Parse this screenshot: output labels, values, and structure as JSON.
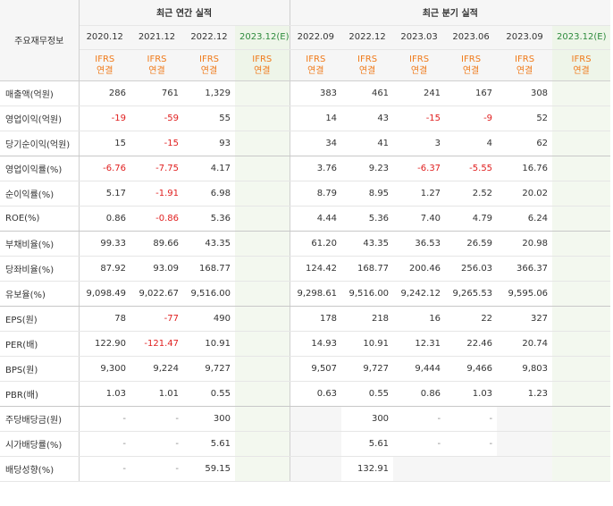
{
  "header": {
    "row_label": "주요재무정보",
    "annual_group": "최근 연간 실적",
    "quarter_group": "최근 분기 실적",
    "ifrs_top": "IFRS",
    "ifrs_bottom": "연결",
    "est_suffix": "(E)",
    "annual_periods": [
      "2020.12",
      "2021.12",
      "2022.12",
      "2023.12"
    ],
    "quarter_periods": [
      "2022.09",
      "2022.12",
      "2023.03",
      "2023.06",
      "2023.09",
      "2023.12"
    ]
  },
  "rows": [
    {
      "label": "매출액(억원)",
      "annual": [
        "286",
        "761",
        "1,329",
        ""
      ],
      "quarter": [
        "383",
        "461",
        "241",
        "167",
        "308",
        ""
      ]
    },
    {
      "label": "영업이익(억원)",
      "annual": [
        "-19",
        "-59",
        "55",
        ""
      ],
      "quarter": [
        "14",
        "43",
        "-15",
        "-9",
        "52",
        ""
      ]
    },
    {
      "label": "당기순이익(억원)",
      "annual": [
        "15",
        "-15",
        "93",
        ""
      ],
      "quarter": [
        "34",
        "41",
        "3",
        "4",
        "62",
        ""
      ]
    },
    {
      "label": "영업이익률(%)",
      "annual": [
        "-6.76",
        "-7.75",
        "4.17",
        ""
      ],
      "quarter": [
        "3.76",
        "9.23",
        "-6.37",
        "-5.55",
        "16.76",
        ""
      ]
    },
    {
      "label": "순이익률(%)",
      "annual": [
        "5.17",
        "-1.91",
        "6.98",
        ""
      ],
      "quarter": [
        "8.79",
        "8.95",
        "1.27",
        "2.52",
        "20.02",
        ""
      ]
    },
    {
      "label": "ROE(%)",
      "annual": [
        "0.86",
        "-0.86",
        "5.36",
        ""
      ],
      "quarter": [
        "4.44",
        "5.36",
        "7.40",
        "4.79",
        "6.24",
        ""
      ]
    },
    {
      "label": "부채비율(%)",
      "annual": [
        "99.33",
        "89.66",
        "43.35",
        ""
      ],
      "quarter": [
        "61.20",
        "43.35",
        "36.53",
        "26.59",
        "20.98",
        ""
      ]
    },
    {
      "label": "당좌비율(%)",
      "annual": [
        "87.92",
        "93.09",
        "168.77",
        ""
      ],
      "quarter": [
        "124.42",
        "168.77",
        "200.46",
        "256.03",
        "366.37",
        ""
      ]
    },
    {
      "label": "유보율(%)",
      "annual": [
        "9,098.49",
        "9,022.67",
        "9,516.00",
        ""
      ],
      "quarter": [
        "9,298.61",
        "9,516.00",
        "9,242.12",
        "9,265.53",
        "9,595.06",
        ""
      ]
    },
    {
      "label": "EPS(원)",
      "annual": [
        "78",
        "-77",
        "490",
        ""
      ],
      "quarter": [
        "178",
        "218",
        "16",
        "22",
        "327",
        ""
      ]
    },
    {
      "label": "PER(배)",
      "annual": [
        "122.90",
        "-121.47",
        "10.91",
        ""
      ],
      "quarter": [
        "14.93",
        "10.91",
        "12.31",
        "22.46",
        "20.74",
        ""
      ]
    },
    {
      "label": "BPS(원)",
      "annual": [
        "9,300",
        "9,224",
        "9,727",
        ""
      ],
      "quarter": [
        "9,507",
        "9,727",
        "9,444",
        "9,466",
        "9,803",
        ""
      ]
    },
    {
      "label": "PBR(배)",
      "annual": [
        "1.03",
        "1.01",
        "0.55",
        ""
      ],
      "quarter": [
        "0.63",
        "0.55",
        "0.86",
        "1.03",
        "1.23",
        ""
      ]
    },
    {
      "label": "주당배당금(원)",
      "annual": [
        "-",
        "-",
        "300",
        ""
      ],
      "quarter": [
        "",
        "300",
        "-",
        "-",
        "",
        ""
      ]
    },
    {
      "label": "시가배당률(%)",
      "annual": [
        "-",
        "-",
        "5.61",
        ""
      ],
      "quarter": [
        "",
        "5.61",
        "-",
        "-",
        "",
        ""
      ]
    },
    {
      "label": "배당성향(%)",
      "annual": [
        "-",
        "-",
        "59.15",
        ""
      ],
      "quarter": [
        "",
        "132.91",
        "",
        "",
        "",
        ""
      ]
    }
  ]
}
